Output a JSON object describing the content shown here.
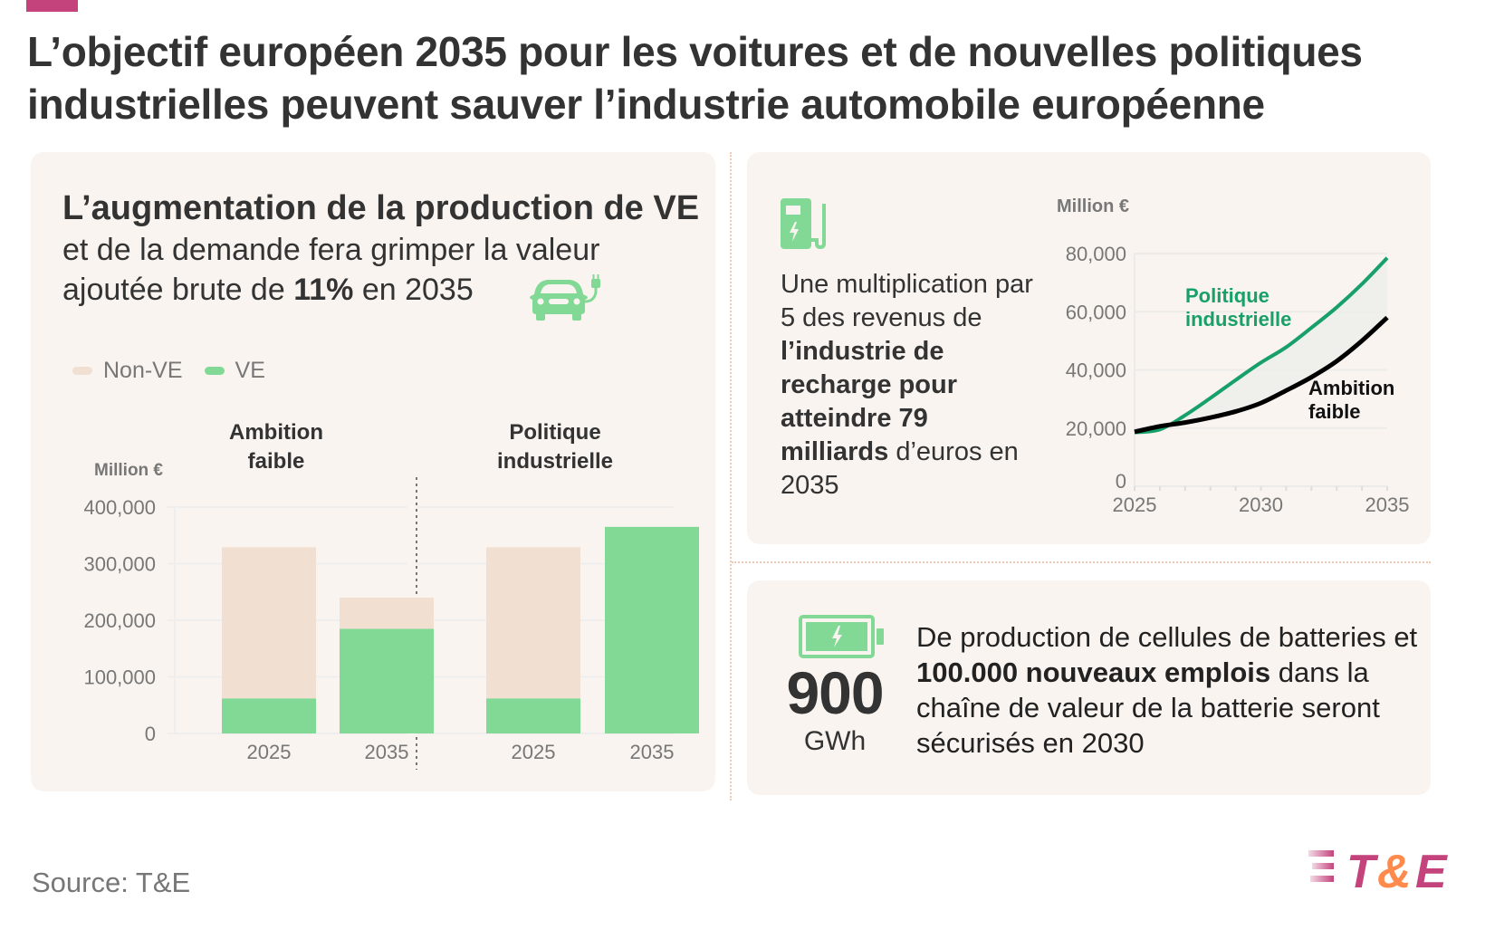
{
  "title": {
    "line1": "L’objectif européen 2035 pour les voitures et de nouvelles politiques",
    "line2": "industrielles peuvent sauver l’industrie automobile européenne"
  },
  "left_card": {
    "heading": "L’augmentation de la production de VE",
    "sub_line1": "et de la demande fera grimper la valeur",
    "sub_line2_pre": "ajoutée brute de ",
    "sub_line2_bold": "11%",
    "sub_line2_post": " en 2035",
    "icon": "electric-car-icon"
  },
  "right_top_card": {
    "icon": "charging-station-icon",
    "text_parts": [
      {
        "t": "Une multiplication par 5 des revenus de ",
        "b": false
      },
      {
        "t": "l’industrie de recharge pour atteindre 79 milliards",
        "b": true
      },
      {
        "t": " d’euros en 2035",
        "b": false
      }
    ]
  },
  "right_bottom_card": {
    "icon": "battery-icon",
    "big_number": "900",
    "unit": "GWh",
    "text_parts": [
      {
        "t": "De production de cellules de batteries et ",
        "b": false
      },
      {
        "t": "100.000 nouveaux emplois",
        "b": true
      },
      {
        "t": " dans la chaîne de valeur de la batterie seront sécurisés en 2030",
        "b": false
      }
    ]
  },
  "footer": {
    "source": "Source: T&E",
    "logo_text_t": "T",
    "logo_text_amp": "&",
    "logo_text_e": "E"
  },
  "colors": {
    "accent_pink": "#c4437d",
    "accent_orange": "#ff8a4c",
    "ev_green": "#82d995",
    "non_ev_beige": "#f1e0d2",
    "line_green": "#17a06a",
    "line_black": "#000000",
    "card_bg": "#f9f4ef"
  },
  "chart_data": [
    {
      "type": "bar",
      "stacked": true,
      "title": "Valeur ajoutée brute",
      "ylabel": "Million €",
      "ylim": [
        0,
        400000
      ],
      "yticks": [
        0,
        100000,
        200000,
        300000,
        400000
      ],
      "ytick_labels": [
        "0",
        "100,000",
        "200,000",
        "300,000",
        "400,000"
      ],
      "legend": {
        "placement": "top-left",
        "entries": [
          "Non-VE",
          "VE"
        ]
      },
      "groups": [
        {
          "name": "Ambition faible",
          "label_line1": "Ambition",
          "label_line2": "faible",
          "categories": [
            "2025",
            "2035"
          ],
          "series": [
            {
              "name": "VE",
              "values": [
                62000,
                185000
              ]
            },
            {
              "name": "Non-VE",
              "values": [
                267000,
                55000
              ]
            }
          ]
        },
        {
          "name": "Politique industrielle",
          "label_line1": "Politique",
          "label_line2": "industrielle",
          "categories": [
            "2025",
            "2035"
          ],
          "series": [
            {
              "name": "VE",
              "values": [
                62000,
                365000
              ]
            },
            {
              "name": "Non-VE",
              "values": [
                267000,
                0
              ]
            }
          ]
        }
      ],
      "grid": true
    },
    {
      "type": "line",
      "title": "Revenus de l’industrie de recharge",
      "ylabel": "Million €",
      "ylim": [
        0,
        80000
      ],
      "yticks": [
        0,
        20000,
        40000,
        60000,
        80000
      ],
      "ytick_labels": [
        "0",
        "20,000",
        "40,000",
        "60,000",
        "80,000"
      ],
      "xlim": [
        2025,
        2035
      ],
      "xticks": [
        2025,
        2030,
        2035
      ],
      "xtick_labels": [
        "2025",
        "2030",
        "2035"
      ],
      "x": [
        2025,
        2026,
        2027,
        2028,
        2029,
        2030,
        2031,
        2032,
        2033,
        2034,
        2035
      ],
      "series": [
        {
          "name": "Politique industrielle",
          "label_line1": "Politique",
          "label_line2": "industrielle",
          "values": [
            18500,
            19500,
            24400,
            30300,
            36500,
            42500,
            47800,
            54500,
            61500,
            69500,
            78500
          ]
        },
        {
          "name": "Ambition faible",
          "label_line1": "Ambition",
          "label_line2": "faible",
          "values": [
            18700,
            20600,
            21900,
            23600,
            25700,
            28600,
            32900,
            37500,
            43000,
            50000,
            58000
          ]
        }
      ],
      "shaded_gap_between_series": true,
      "grid": true
    }
  ]
}
